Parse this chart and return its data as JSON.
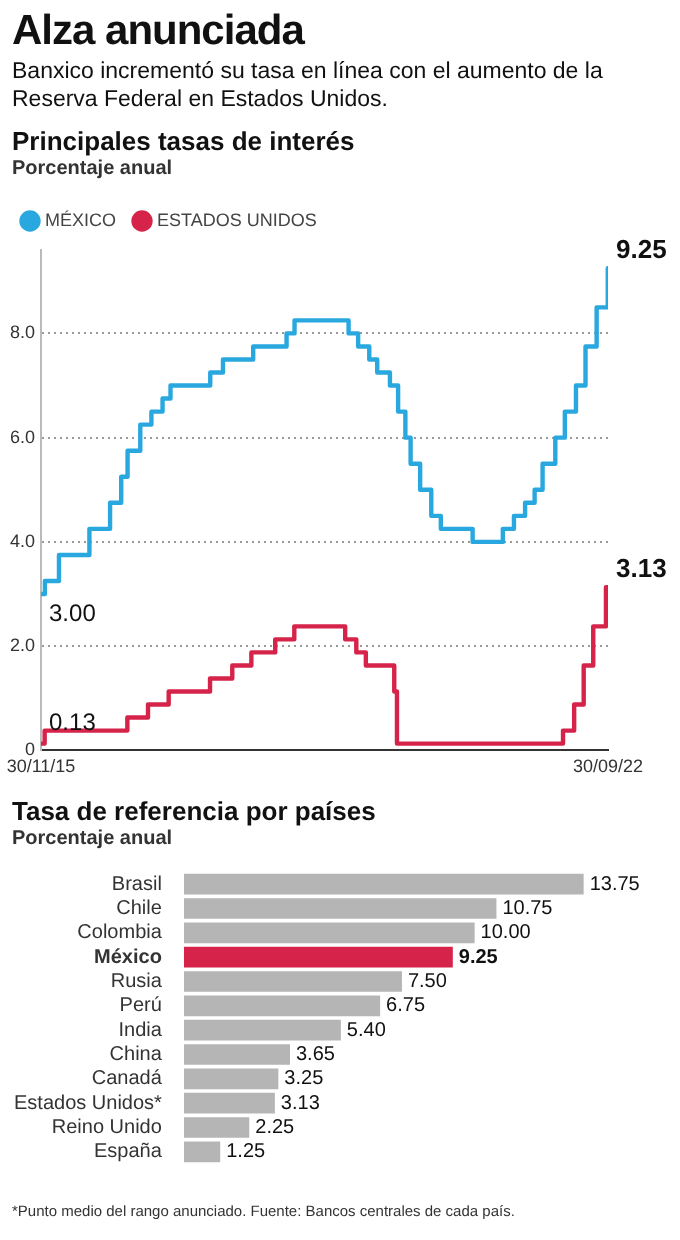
{
  "chart_data": [
    {
      "type": "step",
      "title": "Alza anunciada",
      "subtitle": "Banxico incrementó su tasa en línea con el aumento de la Reserva Federal en Estados Unidos.",
      "annotations": [
        "Principales tasas de interés"
      ],
      "ylabel": "Porcentaje anual",
      "xlim": [
        "2015-11-30",
        "2022-09-30"
      ],
      "xticks": [
        {
          "value": "2015-11-30",
          "label": "30/11/15"
        },
        {
          "value": "2022-09-30",
          "label": "30/09/22"
        }
      ],
      "ylim": [
        0,
        9.6
      ],
      "yticks": [
        0,
        {
          "value": 2,
          "label": "2.0"
        },
        {
          "value": 4,
          "label": "4.0"
        },
        {
          "value": 6,
          "label": "6.0"
        },
        {
          "value": 8,
          "label": "8.0"
        }
      ],
      "grid": "y",
      "legend": "top left",
      "series": [
        {
          "name": "MÉXICO",
          "color": "#29a8e0",
          "x": [
            "2015-11-30",
            "2015-12-17",
            "2016-02-17",
            "2016-06-30",
            "2016-09-29",
            "2016-11-17",
            "2016-12-15",
            "2017-02-09",
            "2017-03-30",
            "2017-05-18",
            "2017-06-22",
            "2017-12-14",
            "2018-02-08",
            "2018-06-21",
            "2018-11-15",
            "2018-12-20",
            "2019-08-15",
            "2019-09-26",
            "2019-11-14",
            "2019-12-19",
            "2020-02-13",
            "2020-03-20",
            "2020-04-21",
            "2020-05-14",
            "2020-06-25",
            "2020-08-13",
            "2020-09-24",
            "2021-02-11",
            "2021-06-24",
            "2021-08-12",
            "2021-09-30",
            "2021-11-11",
            "2021-12-16",
            "2022-02-10",
            "2022-03-24",
            "2022-05-12",
            "2022-06-23",
            "2022-08-11",
            "2022-09-29",
            "2022-09-30"
          ],
          "values": [
            3.0,
            3.0,
            3.25,
            3.75,
            4.25,
            4.75,
            5.25,
            5.75,
            6.25,
            6.5,
            6.75,
            7.0,
            7.25,
            7.5,
            7.75,
            8.0,
            8.25,
            8.0,
            7.75,
            7.5,
            7.25,
            7.0,
            6.5,
            6.0,
            5.5,
            5.0,
            4.5,
            4.25,
            4.0,
            4.25,
            4.5,
            4.75,
            5.0,
            5.5,
            6.0,
            6.5,
            7.0,
            7.75,
            8.5,
            9.25
          ],
          "value_labels": [
            "3.00",
            null,
            null,
            null,
            null,
            null,
            null,
            null,
            null,
            null,
            null,
            null,
            null,
            null,
            null,
            null,
            null,
            null,
            null,
            null,
            null,
            null,
            null,
            null,
            null,
            null,
            null,
            null,
            null,
            null,
            null,
            null,
            null,
            null,
            null,
            null,
            null,
            null,
            null,
            "9.25"
          ]
        },
        {
          "name": "ESTADOS UNIDOS",
          "color": "#d6234a",
          "x": [
            "2015-11-30",
            "2015-12-16",
            "2016-12-14",
            "2017-03-15",
            "2017-06-14",
            "2017-12-13",
            "2018-03-21",
            "2018-06-13",
            "2018-09-26",
            "2018-12-19",
            "2019-07-31",
            "2019-09-18",
            "2019-10-30",
            "2020-03-03",
            "2020-03-15",
            "2022-03-16",
            "2022-05-04",
            "2022-06-15",
            "2022-07-27",
            "2022-09-21",
            "2022-09-30"
          ],
          "values": [
            0.13,
            0.13,
            0.38,
            0.63,
            0.88,
            1.13,
            1.38,
            1.63,
            1.88,
            2.13,
            2.38,
            2.13,
            1.88,
            1.63,
            1.13,
            0.13,
            0.38,
            0.88,
            1.63,
            2.38,
            3.13
          ],
          "value_labels": [
            "0.13",
            null,
            null,
            null,
            null,
            null,
            null,
            null,
            null,
            null,
            null,
            null,
            null,
            null,
            null,
            null,
            null,
            null,
            null,
            null,
            "3.13"
          ]
        }
      ]
    },
    {
      "type": "bar",
      "orientation": "horizontal",
      "title": "Tasa de referencia por países",
      "subtitle": "Porcentaje anual",
      "tick_labels": "y",
      "categories": [
        "Brasil",
        "Chile",
        "Colombia",
        "México",
        "Rusia",
        "Perú",
        "India",
        "China",
        "Canadá",
        "Estados Unidos*",
        "Reino Unido",
        "España"
      ],
      "values": [
        13.75,
        10.75,
        10.0,
        9.25,
        7.5,
        6.75,
        5.4,
        3.65,
        3.25,
        3.13,
        2.25,
        1.25
      ],
      "value_labels": [
        "13.75",
        "10.75",
        "10.00",
        "9.25",
        "7.50",
        "6.75",
        "5.40",
        "3.65",
        "3.25",
        "3.13",
        "2.25",
        "1.25"
      ],
      "colors": [
        "#b5b5b5",
        "#b5b5b5",
        "#b5b5b5",
        "#d6234a",
        "#b5b5b5",
        "#b5b5b5",
        "#b5b5b5",
        "#b5b5b5",
        "#b5b5b5",
        "#b5b5b5",
        "#b5b5b5",
        "#b5b5b5"
      ],
      "annotations": [
        "*Punto medio del rango anunciado. Fuente: Bancos centrales de cada país."
      ]
    }
  ]
}
